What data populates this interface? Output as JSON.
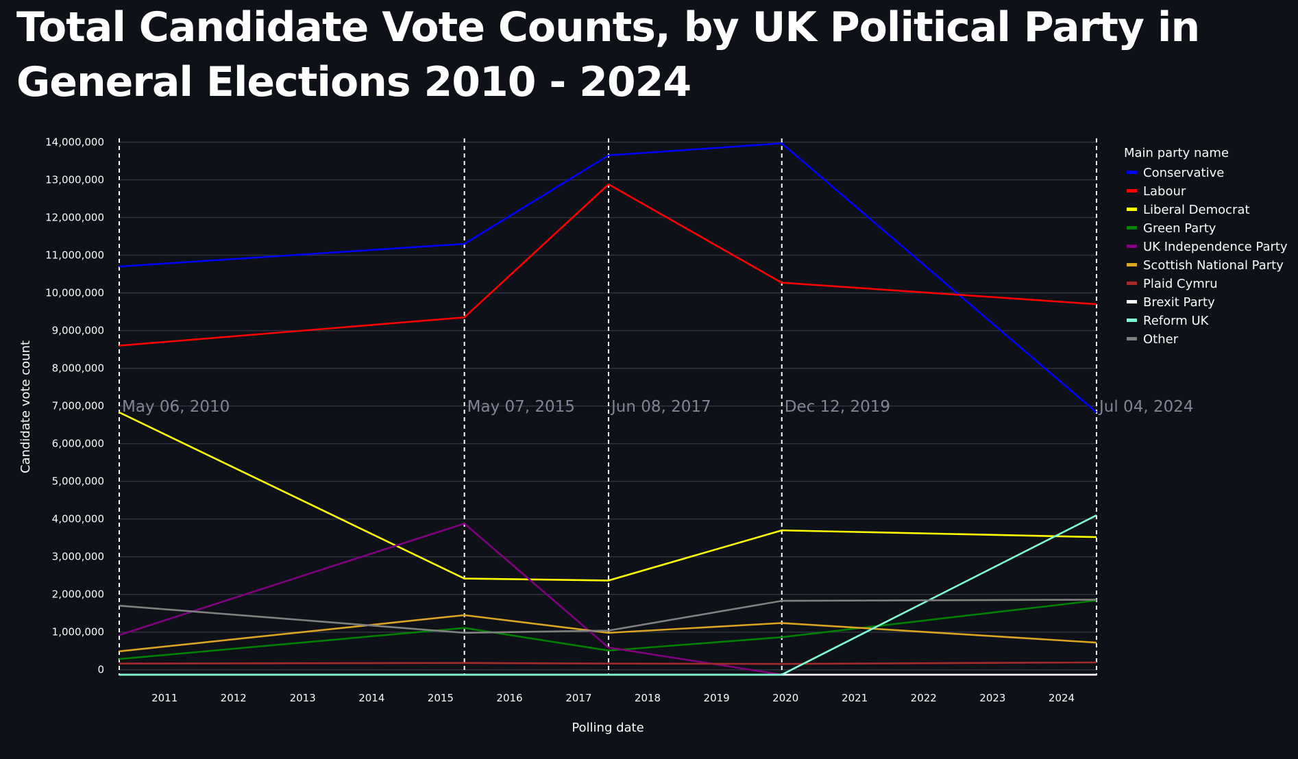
{
  "title": "Total Candidate Vote Counts, by UK Political Party in General Elections 2010 - 2024",
  "chart_data": {
    "type": "line",
    "title": "Total Candidate Vote Counts, by UK Political Party in General Elections 2010 - 2024",
    "xlabel": "Polling date",
    "ylabel": "Candidate vote count",
    "x_ticks": [
      "2011",
      "2012",
      "2013",
      "2014",
      "2015",
      "2016",
      "2017",
      "2018",
      "2019",
      "2020",
      "2021",
      "2022",
      "2023",
      "2024"
    ],
    "y_ticks": [
      "0",
      "1,000,000",
      "2,000,000",
      "3,000,000",
      "4,000,000",
      "5,000,000",
      "6,000,000",
      "7,000,000",
      "8,000,000",
      "9,000,000",
      "10,000,000",
      "11,000,000",
      "12,000,000",
      "13,000,000",
      "14,000,000"
    ],
    "ylim": [
      -150000,
      14100000
    ],
    "xlim": [
      "2010-05-06",
      "2024-07-04"
    ],
    "grid": true,
    "legend_title": "Main party name",
    "legend_position": "right",
    "election_dates": [
      "2010-05-06",
      "2015-05-07",
      "2017-06-08",
      "2019-12-12",
      "2024-07-04"
    ],
    "election_labels": [
      "May 06, 2010",
      "May 07, 2015",
      "Jun 08, 2017",
      "Dec 12, 2019",
      "Jul 04, 2024"
    ],
    "series": [
      {
        "name": "Conservative",
        "color": "#0000ff",
        "values": [
          10700000,
          11300000,
          13650000,
          13970000,
          6830000
        ]
      },
      {
        "name": "Labour",
        "color": "#ff0000",
        "values": [
          8600000,
          9350000,
          12880000,
          10270000,
          9700000
        ]
      },
      {
        "name": "Liberal Democrat",
        "color": "#ffff00",
        "values": [
          6830000,
          2420000,
          2370000,
          3700000,
          3520000
        ]
      },
      {
        "name": "Green Party",
        "color": "#008000",
        "values": [
          285000,
          1110000,
          510000,
          865000,
          1840000
        ]
      },
      {
        "name": "UK Independence Party",
        "color": "#800080",
        "values": [
          920000,
          3880000,
          590000,
          -130000,
          -130000
        ]
      },
      {
        "name": "Scottish National Party",
        "color": "#daa520",
        "values": [
          490000,
          1450000,
          980000,
          1240000,
          720000
        ]
      },
      {
        "name": "Plaid Cymru",
        "color": "#a52a2a",
        "values": [
          165000,
          180000,
          165000,
          155000,
          195000
        ]
      },
      {
        "name": "Brexit Party",
        "color": "#ffffff",
        "values": [
          -130000,
          -130000,
          -130000,
          -130000,
          -130000
        ]
      },
      {
        "name": "Reform UK",
        "color": "#7fffd4",
        "values": [
          -130000,
          -130000,
          -130000,
          -130000,
          4100000
        ]
      },
      {
        "name": "Other",
        "color": "#808080",
        "values": [
          1700000,
          980000,
          1040000,
          1830000,
          1860000
        ]
      }
    ]
  }
}
